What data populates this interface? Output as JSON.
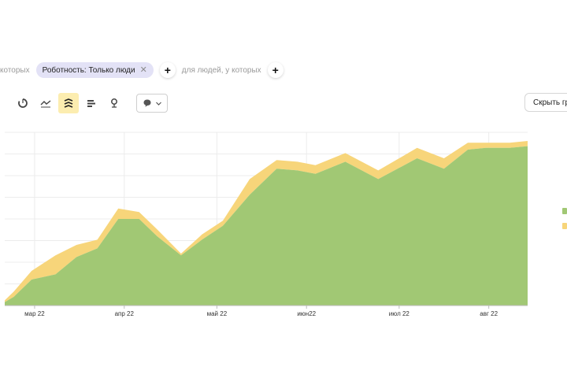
{
  "filters": {
    "prefix_text": "которых",
    "chip_label": "Роботность: Только люди",
    "people_text": "для людей, у которых",
    "add_symbol": "+"
  },
  "toolbar": {
    "tools": [
      {
        "name": "pie-chart-icon",
        "active": false
      },
      {
        "name": "line-chart-icon",
        "active": false
      },
      {
        "name": "area-chart-icon",
        "active": true
      },
      {
        "name": "bar-chart-icon",
        "active": false
      },
      {
        "name": "map-pin-icon",
        "active": false
      }
    ],
    "hide_button_label": "Скрыть гр"
  },
  "colors": {
    "green": "#a1c874",
    "yellow": "#f7d57a",
    "chip_bg": "#e3e2f6",
    "active_tool_bg": "#fcedb0"
  },
  "chart_data": {
    "type": "area",
    "stacked": true,
    "x": [
      0,
      3,
      9,
      17,
      24,
      31,
      38,
      45,
      51,
      59,
      66,
      73,
      82,
      91,
      98,
      104,
      114,
      125,
      138,
      147,
      155,
      161,
      169,
      175
    ],
    "x_note_unit": "days from chart start",
    "series": [
      {
        "color": "#a1c874",
        "values": [
          2,
          5,
          15,
          18,
          28,
          33,
          50,
          50,
          40,
          29,
          38,
          46,
          64,
          79,
          78,
          76,
          83,
          73,
          85,
          79,
          90,
          91,
          91,
          92
        ]
      },
      {
        "color": "#f7d57a",
        "values": [
          1,
          3,
          5,
          11,
          7,
          5,
          6,
          4,
          4,
          1,
          3,
          3,
          9,
          5,
          5,
          5,
          5,
          5,
          6,
          6,
          4,
          3,
          3,
          3
        ]
      }
    ],
    "x_ticks": [
      {
        "value": 10,
        "label": "мар 22"
      },
      {
        "value": 40,
        "label": "апр 22"
      },
      {
        "value": 71,
        "label": "май 22"
      },
      {
        "value": 101,
        "label": "июн22"
      },
      {
        "value": 132,
        "label": "июл 22"
      },
      {
        "value": 162,
        "label": "авг 22"
      }
    ],
    "ylim": [
      0,
      100
    ],
    "grid": true,
    "legend": "right"
  }
}
